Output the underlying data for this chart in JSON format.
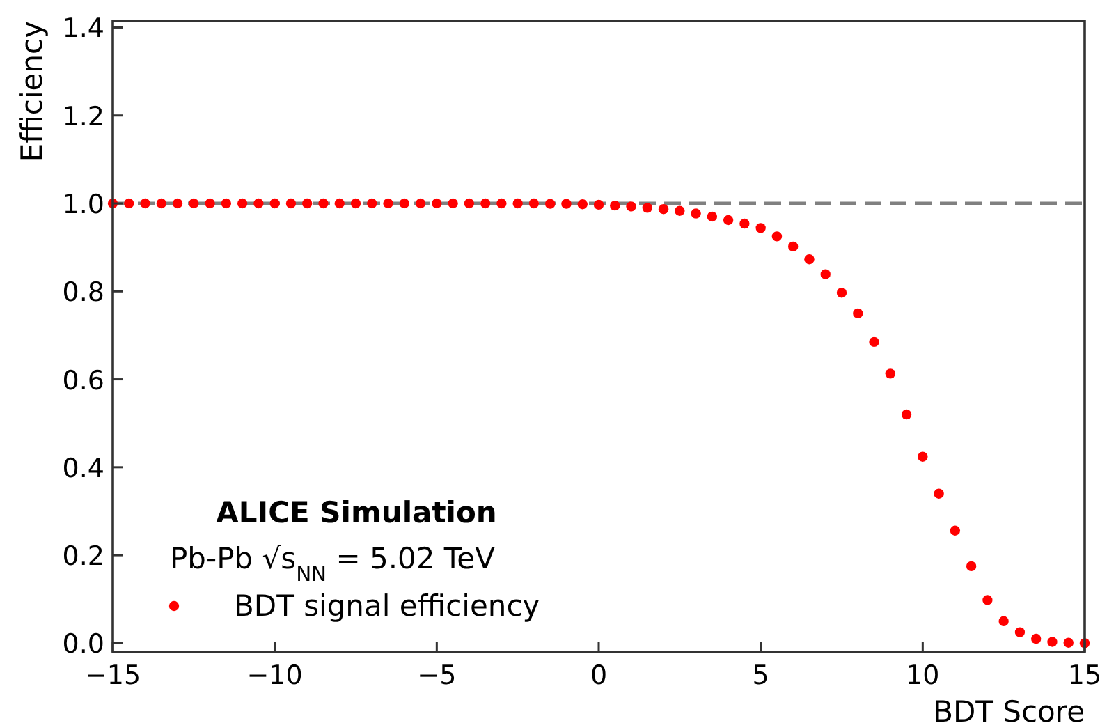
{
  "chart_data": {
    "type": "scatter",
    "xlabel": "BDT Score",
    "ylabel": "Efficiency",
    "xlim": [
      -15,
      15
    ],
    "xticks": [
      {
        "value": -15,
        "label": "−15"
      },
      {
        "value": -10,
        "label": "−10"
      },
      {
        "value": -5,
        "label": "−5"
      },
      0,
      5,
      10,
      15
    ],
    "ylim": [
      -0.02,
      1.415
    ],
    "yticks": [
      {
        "value": 0,
        "label": "0.0"
      },
      0.2,
      0.4,
      0.6,
      0.8,
      {
        "value": 1,
        "label": "1.0"
      },
      1.2,
      1.4
    ],
    "grid": false,
    "legend": "bottom left",
    "marker": "circle",
    "annotations": [
      "ALICE Simulation",
      "Pb-Pb √s$_{NN}$ = 5.02 TeV"
    ],
    "ref_lines": [
      {
        "axis": "y",
        "value": 1,
        "color": "#808080",
        "line_style": "dashed"
      }
    ],
    "series": [
      {
        "name": "BDT signal efficiency",
        "color": "#ff0000",
        "x": [
          -15,
          -14.5,
          -14,
          -13.5,
          -13,
          -12.5,
          -12,
          -11.5,
          -11,
          -10.5,
          -10,
          -9.5,
          -9,
          -8.5,
          -8,
          -7.5,
          -7,
          -6.5,
          -6,
          -5.5,
          -5,
          -4.5,
          -4,
          -3.5,
          -3,
          -2.5,
          -2,
          -1.5,
          -1,
          -0.5,
          0,
          0.5,
          1,
          1.5,
          2,
          2.5,
          3,
          3.5,
          4,
          4.5,
          5,
          5.5,
          6,
          6.5,
          7,
          7.5,
          8,
          8.5,
          9,
          9.5,
          10,
          10.5,
          11,
          11.5,
          12,
          12.5,
          13,
          13.5,
          14,
          14.5,
          15
        ],
        "values": [
          1,
          1,
          1,
          1,
          1,
          1,
          1,
          1,
          1,
          1,
          1,
          1,
          1,
          1,
          1,
          1,
          1,
          1,
          1,
          1,
          1,
          1,
          1,
          1,
          1,
          1,
          1,
          0.999,
          0.999,
          0.998,
          0.997,
          0.995,
          0.993,
          0.99,
          0.987,
          0.983,
          0.977,
          0.97,
          0.962,
          0.954,
          0.944,
          0.925,
          0.902,
          0.873,
          0.839,
          0.797,
          0.75,
          0.685,
          0.613,
          0.52,
          0.424,
          0.34,
          0.256,
          0.175,
          0.098,
          0.05,
          0.025,
          0.01,
          0.003,
          0.001,
          0
        ]
      }
    ]
  }
}
